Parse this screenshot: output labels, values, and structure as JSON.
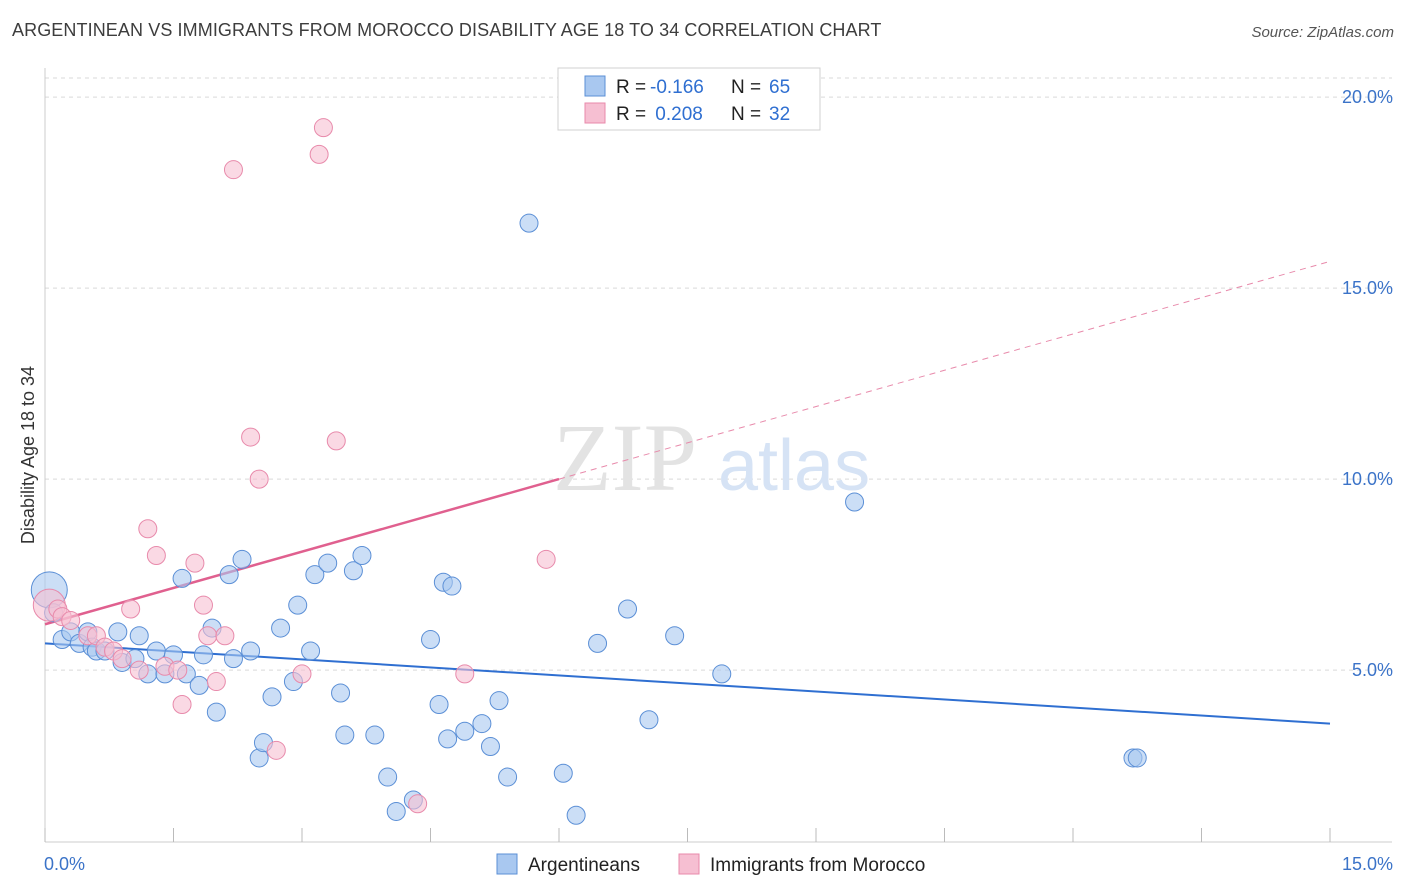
{
  "title": "ARGENTINEAN VS IMMIGRANTS FROM MOROCCO DISABILITY AGE 18 TO 34 CORRELATION CHART",
  "source": "Source: ZipAtlas.com",
  "watermark": {
    "zip": "ZIP",
    "atlas": "atlas"
  },
  "colors": {
    "blue_fill": "#a9c8f0",
    "blue_stroke": "#5b8fd6",
    "blue_line": "#2f6fd1",
    "pink_fill": "#f6bfd2",
    "pink_stroke": "#e88aab",
    "pink_line": "#e0608f",
    "grid": "#d9d9d9",
    "tick_text": "#3b73c8"
  },
  "legend": {
    "rows": [
      {
        "r_label": "R = ",
        "r_value": "-0.166",
        "n_label": "N = ",
        "n_value": "65"
      },
      {
        "r_label": "R = ",
        "r_value": " 0.208",
        "n_label": "N = ",
        "n_value": "32"
      }
    ]
  },
  "chart_data": {
    "type": "scatter",
    "title": "ARGENTINEAN VS IMMIGRANTS FROM MOROCCO DISABILITY AGE 18 TO 34 CORRELATION CHART",
    "xlabel": "",
    "ylabel": "Disability Age 18 to 34",
    "xlim": [
      0,
      15
    ],
    "ylim": [
      0.5,
      20.5
    ],
    "x_tick_labels": [
      "0.0%",
      "15.0%"
    ],
    "y_ticks": [
      5,
      10,
      15,
      20
    ],
    "y_tick_labels": [
      "5.0%",
      "10.0%",
      "15.0%",
      "20.0%"
    ],
    "grid": true,
    "legend_position": "top-center and bottom",
    "series": [
      {
        "name": "Argentineans",
        "color": "#a9c8f0",
        "trend": {
          "x0": 0.0,
          "y0": 5.7,
          "x1": 15.0,
          "y1": 3.6
        },
        "points": [
          [
            0.05,
            7.1
          ],
          [
            0.1,
            6.5
          ],
          [
            0.2,
            5.8
          ],
          [
            0.3,
            6.0
          ],
          [
            0.4,
            5.7
          ],
          [
            0.5,
            6.0
          ],
          [
            0.55,
            5.6
          ],
          [
            0.6,
            5.5
          ],
          [
            0.7,
            5.5
          ],
          [
            0.85,
            6.0
          ],
          [
            0.9,
            5.2
          ],
          [
            1.05,
            5.3
          ],
          [
            1.1,
            5.9
          ],
          [
            1.2,
            4.9
          ],
          [
            1.3,
            5.5
          ],
          [
            1.4,
            4.9
          ],
          [
            1.5,
            5.4
          ],
          [
            1.6,
            7.4
          ],
          [
            1.65,
            4.9
          ],
          [
            1.8,
            4.6
          ],
          [
            1.85,
            5.4
          ],
          [
            1.95,
            6.1
          ],
          [
            2.0,
            3.9
          ],
          [
            2.15,
            7.5
          ],
          [
            2.2,
            5.3
          ],
          [
            2.3,
            7.9
          ],
          [
            2.4,
            5.5
          ],
          [
            2.5,
            2.7
          ],
          [
            2.55,
            3.1
          ],
          [
            2.65,
            4.3
          ],
          [
            2.75,
            6.1
          ],
          [
            2.9,
            4.7
          ],
          [
            2.95,
            6.7
          ],
          [
            3.1,
            5.5
          ],
          [
            3.15,
            7.5
          ],
          [
            3.3,
            7.8
          ],
          [
            3.45,
            4.4
          ],
          [
            3.5,
            3.3
          ],
          [
            3.6,
            7.6
          ],
          [
            3.7,
            8.0
          ],
          [
            3.85,
            3.3
          ],
          [
            4.0,
            2.2
          ],
          [
            4.1,
            1.3
          ],
          [
            4.3,
            1.6
          ],
          [
            4.5,
            5.8
          ],
          [
            4.6,
            4.1
          ],
          [
            4.7,
            3.2
          ],
          [
            4.65,
            7.3
          ],
          [
            4.75,
            7.2
          ],
          [
            4.9,
            3.4
          ],
          [
            5.1,
            3.6
          ],
          [
            5.2,
            3.0
          ],
          [
            5.3,
            4.2
          ],
          [
            5.4,
            2.2
          ],
          [
            5.65,
            16.7
          ],
          [
            6.05,
            2.3
          ],
          [
            6.2,
            1.2
          ],
          [
            6.45,
            5.7
          ],
          [
            6.8,
            6.6
          ],
          [
            7.05,
            3.7
          ],
          [
            7.35,
            5.9
          ],
          [
            7.9,
            4.9
          ],
          [
            9.45,
            9.4
          ],
          [
            12.7,
            2.7
          ],
          [
            12.75,
            2.7
          ]
        ]
      },
      {
        "name": "Immigrants from Morocco",
        "color": "#f6bfd2",
        "trend": {
          "x0": 0.0,
          "y0": 6.2,
          "x1": 6.0,
          "y1": 10.0,
          "dash_to_x": 15.0,
          "dash_to_y": 15.7
        },
        "points": [
          [
            0.05,
            6.7
          ],
          [
            0.15,
            6.6
          ],
          [
            0.2,
            6.4
          ],
          [
            0.3,
            6.3
          ],
          [
            0.5,
            5.9
          ],
          [
            0.6,
            5.9
          ],
          [
            0.7,
            5.6
          ],
          [
            0.8,
            5.5
          ],
          [
            0.9,
            5.3
          ],
          [
            1.0,
            6.6
          ],
          [
            1.1,
            5.0
          ],
          [
            1.2,
            8.7
          ],
          [
            1.3,
            8.0
          ],
          [
            1.4,
            5.1
          ],
          [
            1.55,
            5.0
          ],
          [
            1.6,
            4.1
          ],
          [
            1.75,
            7.8
          ],
          [
            1.85,
            6.7
          ],
          [
            1.9,
            5.9
          ],
          [
            2.0,
            4.7
          ],
          [
            2.1,
            5.9
          ],
          [
            2.2,
            18.1
          ],
          [
            2.4,
            11.1
          ],
          [
            2.5,
            10.0
          ],
          [
            2.7,
            2.9
          ],
          [
            3.0,
            4.9
          ],
          [
            3.2,
            18.5
          ],
          [
            3.25,
            19.2
          ],
          [
            3.4,
            11.0
          ],
          [
            4.35,
            1.5
          ],
          [
            4.9,
            4.9
          ],
          [
            5.85,
            7.9
          ]
        ]
      }
    ]
  }
}
